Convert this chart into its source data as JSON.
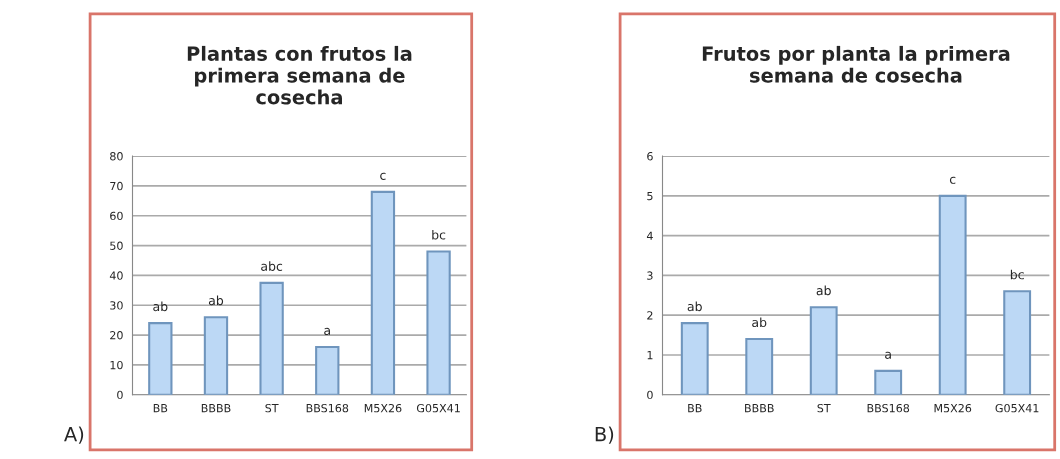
{
  "chart_data": [
    {
      "type": "bar",
      "title": "Plantas con frutos la primera semana de cosecha",
      "categories": [
        "BB",
        "BBBB",
        "ST",
        "BBS168",
        "M5X26",
        "G05X41"
      ],
      "values": [
        24,
        26,
        37.5,
        16,
        68,
        48
      ],
      "color": "#bcd8f5",
      "ylim": [
        0,
        80
      ],
      "yticks": [
        0,
        10,
        20,
        30,
        40,
        50,
        60,
        70,
        80
      ],
      "grid": "y",
      "annotations": [
        "A)",
        {
          "text": "ab",
          "x": "BB",
          "y": 24
        },
        {
          "text": "ab",
          "x": "BBBB",
          "y": 26
        },
        {
          "text": "abc",
          "x": "ST",
          "y": 37.5
        },
        {
          "text": "a",
          "x": "BBS168",
          "y": 16
        },
        {
          "text": "c",
          "x": "M5X26",
          "y": 68
        },
        {
          "text": "bc",
          "x": "G05X41",
          "y": 48
        }
      ]
    },
    {
      "type": "bar",
      "title": "Frutos por planta la primera semana de cosecha",
      "categories": [
        "BB",
        "BBBB",
        "ST",
        "BBS168",
        "M5X26",
        "G05X41"
      ],
      "values": [
        1.8,
        1.4,
        2.2,
        0.6,
        5.0,
        2.6
      ],
      "color": "#bcd8f5",
      "ylim": [
        0,
        6
      ],
      "yticks": [
        0,
        1,
        2,
        3,
        4,
        5,
        6
      ],
      "grid": "y",
      "annotations": [
        "B)",
        {
          "text": "ab",
          "x": "BB",
          "y": 1.8
        },
        {
          "text": "ab",
          "x": "BBBB",
          "y": 1.4
        },
        {
          "text": "ab",
          "x": "ST",
          "y": 2.2
        },
        {
          "text": "a",
          "x": "BBS168",
          "y": 0.6
        },
        {
          "text": "c",
          "x": "M5X26",
          "y": 5.0
        },
        {
          "text": "bc",
          "x": "G05X41",
          "y": 2.6
        }
      ]
    }
  ]
}
